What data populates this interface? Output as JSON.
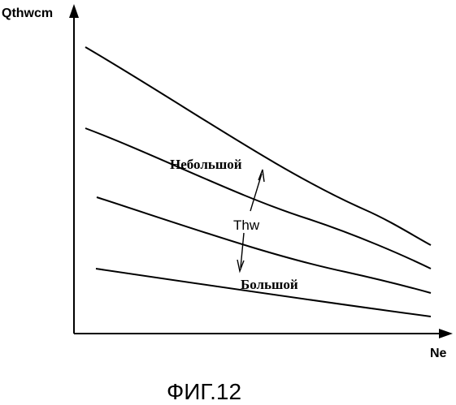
{
  "figure": {
    "y_axis_label": "Qthwcm",
    "x_axis_label": "Ne",
    "parameter_label": "Thw",
    "label_small": "Небольшой",
    "label_large": "Большой",
    "caption": "ФИГ.12"
  },
  "chart_data": {
    "type": "line",
    "title": "",
    "xlabel": "Ne",
    "ylabel": "Qthwcm",
    "grid": false,
    "axis_ticks": false,
    "series_count": 4
  }
}
